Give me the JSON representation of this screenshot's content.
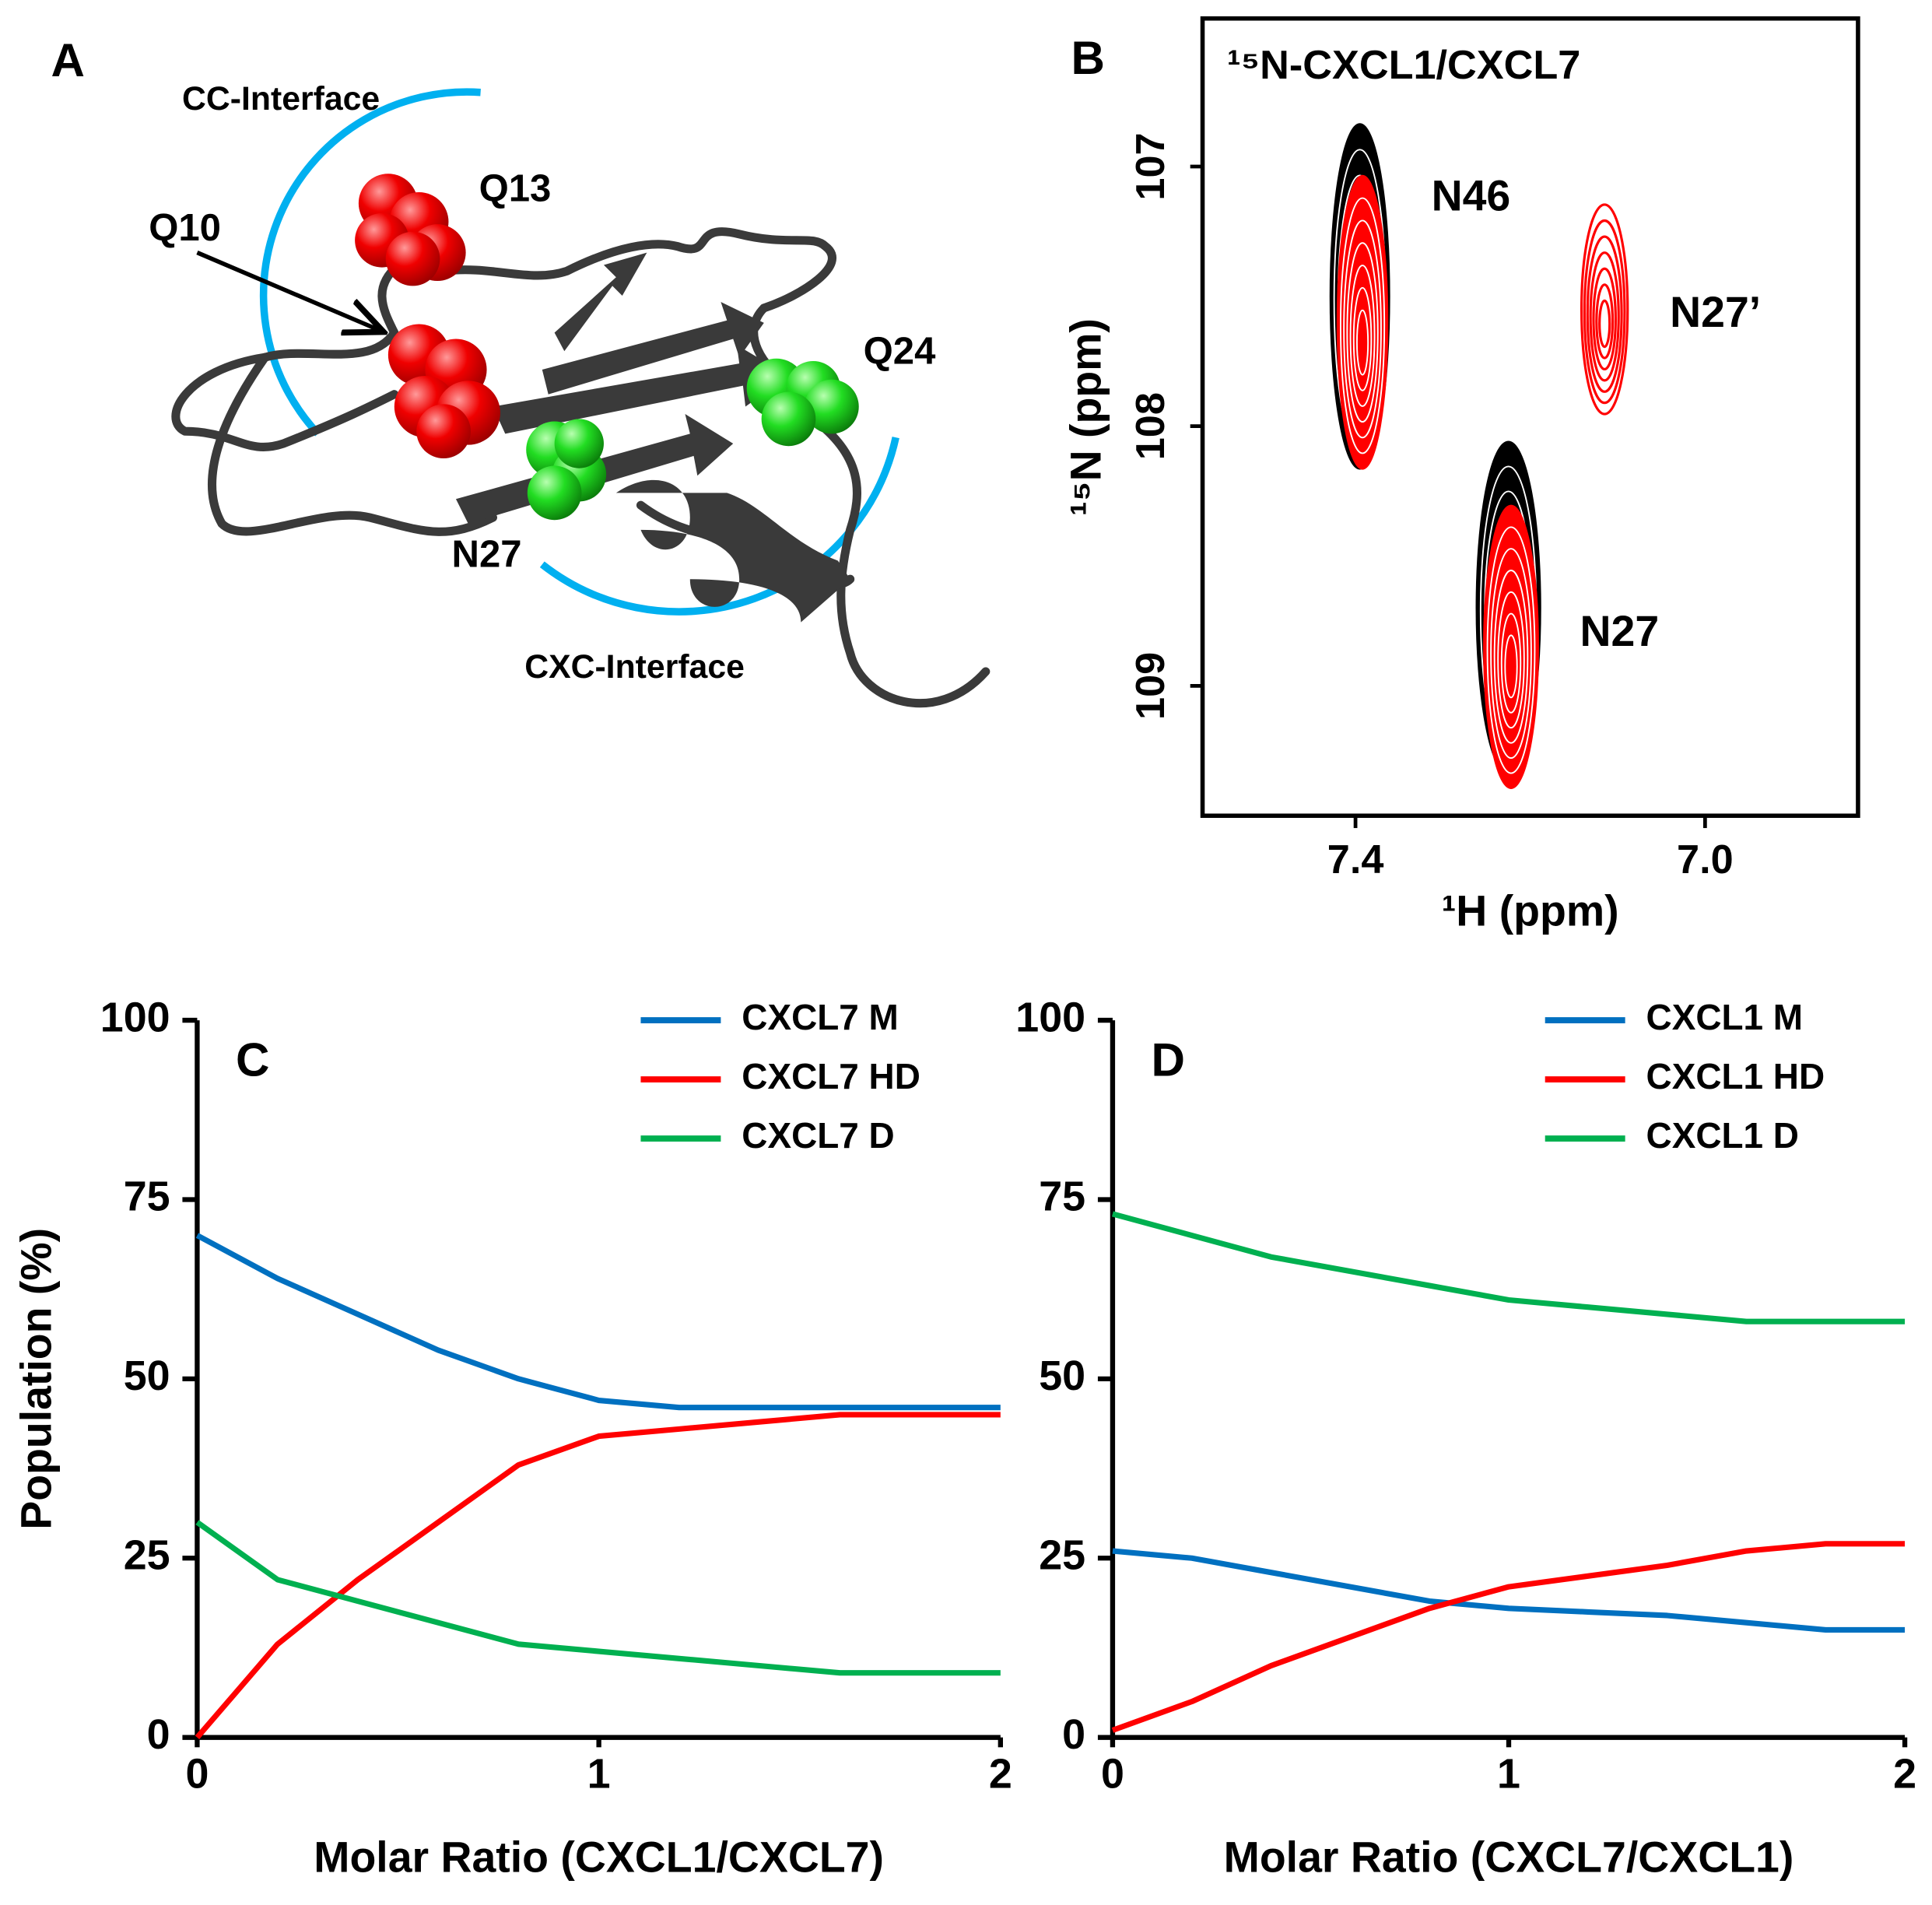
{
  "figure_a": {
    "panel": "A",
    "labels": [
      "CC-Interface",
      "Q13",
      "Q10",
      "Q24",
      "N27",
      "CXC-Interface"
    ]
  },
  "chart_data": [
    {
      "type": "contour",
      "panel": "B",
      "title": "¹⁵N-CXCL1/CXCL7",
      "x_label": "¹H (ppm)",
      "y_label": "¹⁵N (ppm)",
      "xlim": [
        7.575,
        6.825
      ],
      "ylim": [
        109.5,
        106.43
      ],
      "xticks": [
        7.4,
        {
          "value": 7,
          "label": "7.0"
        }
      ],
      "yticks": [
        107,
        108,
        109
      ],
      "categories": [
        "N46",
        "N27’",
        "N27"
      ],
      "series": [
        {
          "color": "#000000",
          "x": [
            7.395,
            null,
            7.225
          ],
          "values": [
            107.5,
            null,
            108.7
          ]
        },
        {
          "color": "#ff0000",
          "x": [
            7.392,
            7.115,
            7.222
          ],
          "values": [
            107.6,
            107.55,
            108.85
          ]
        }
      ]
    },
    {
      "type": "line",
      "panel": "C",
      "x_label": "Molar Ratio (CXCL1/CXCL7)",
      "y_label": "Population (%)",
      "xlim": [
        0,
        2
      ],
      "ylim": [
        0,
        100
      ],
      "xticks": [
        0,
        1,
        2
      ],
      "yticks": [
        0,
        25,
        50,
        75,
        100
      ],
      "legend": "upper right",
      "x": [
        0,
        0.2,
        0.4,
        0.6,
        0.8,
        1.0,
        1.2,
        1.4,
        1.6,
        1.8,
        2.0
      ],
      "series": [
        {
          "name": "CXCL7 M",
          "color": "#0070c0",
          "values": [
            70,
            64,
            59,
            54,
            50,
            47,
            46,
            46,
            46,
            46,
            46
          ]
        },
        {
          "name": "CXCL7 HD",
          "color": "#ff0000",
          "values": [
            0,
            13,
            22,
            30,
            38,
            42,
            43,
            44,
            45,
            45,
            45
          ]
        },
        {
          "name": "CXCL7 D",
          "color": "#00b050",
          "values": [
            30,
            22,
            19,
            16,
            13,
            12,
            11,
            10,
            9,
            9,
            9
          ]
        }
      ]
    },
    {
      "type": "line",
      "panel": "D",
      "x_label": "Molar Ratio (CXCL7/CXCL1)",
      "xlim": [
        0,
        2
      ],
      "ylim": [
        0,
        100
      ],
      "xticks": [
        0,
        1,
        2
      ],
      "yticks": [
        0,
        25,
        50,
        75,
        100
      ],
      "legend": "upper right",
      "x": [
        0,
        0.2,
        0.4,
        0.6,
        0.8,
        1.0,
        1.2,
        1.4,
        1.6,
        1.8,
        2.0
      ],
      "series": [
        {
          "name": "CXCL1 M",
          "color": "#0070c0",
          "values": [
            26,
            25,
            23,
            21,
            19,
            18,
            17.5,
            17,
            16,
            15,
            15
          ]
        },
        {
          "name": "CXCL1 HD",
          "color": "#ff0000",
          "values": [
            1,
            5,
            10,
            14,
            18,
            21,
            22.5,
            24,
            26,
            27,
            27
          ]
        },
        {
          "name": "CXCL1 D",
          "color": "#00b050",
          "values": [
            73,
            70,
            67,
            65,
            63,
            61,
            60,
            59,
            58,
            58,
            58
          ]
        }
      ]
    }
  ]
}
